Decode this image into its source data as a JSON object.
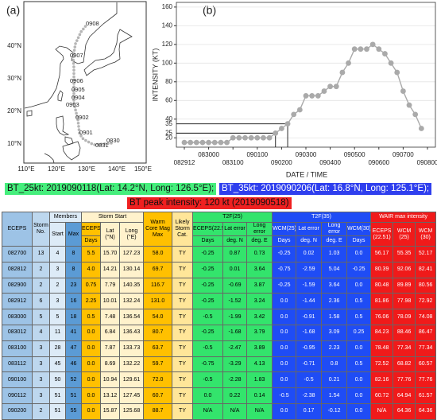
{
  "map": {
    "panel_label": "(a)",
    "lon_labels": [
      "110°E",
      "120°E",
      "130°E",
      "140°E",
      "150°E"
    ],
    "lat_labels": [
      "10°N",
      "20°N",
      "30°N",
      "40°N"
    ],
    "track_labels": [
      "0908",
      "0907",
      "0906",
      "0905",
      "0904",
      "0903",
      "0902",
      "0901",
      "0831",
      "0830"
    ]
  },
  "chart_data": {
    "type": "line",
    "panel_label": "(b)",
    "x_label": "DATE / TIME",
    "y_label": "INTENSITY (KT)",
    "categories": [
      "082912",
      null,
      null,
      null,
      "083000",
      null,
      null,
      null,
      "083100",
      null,
      null,
      null,
      "090100",
      null,
      null,
      null,
      "090200",
      null,
      null,
      null,
      "090300",
      null,
      null,
      null,
      "090400",
      null,
      null,
      null,
      "090500",
      null,
      null,
      null,
      "090600",
      null,
      null,
      null,
      "090700",
      null,
      null,
      null,
      "090800"
    ],
    "values": [
      15,
      15,
      15,
      15,
      15,
      15,
      15,
      15,
      20,
      20,
      20,
      20,
      20,
      20,
      20,
      25,
      30,
      35,
      45,
      50,
      65,
      65,
      65,
      70,
      75,
      75,
      90,
      100,
      115,
      115,
      115,
      120,
      115,
      110,
      100,
      90,
      70,
      55,
      45,
      30,
      null
    ],
    "color": "#aaaaaa",
    "ylim": [
      10,
      165
    ],
    "yticks": [
      20,
      40,
      60,
      80,
      100,
      120,
      140,
      160
    ],
    "reference_lines": [
      25,
      35
    ],
    "grid": true
  },
  "captions": [
    "BT_25kt: 2019090118(Lat: 14.2°N, Long: 126.5°E);",
    "BT_35kt: 2019090206(Lat: 16.8°N, Long: 125.1°E);",
    "BT peak intensity: 120 kt (2019090518)"
  ],
  "table": {
    "group_headers": [
      "ECEPS",
      "Storm No.",
      "Members",
      "Storm Start",
      "Warm Core Mag Max",
      "Likely Storm Cat.",
      "T2F(25)",
      "T2F(35)",
      "WAIR max intensity"
    ],
    "sub_headers": [
      "Start",
      "Max",
      "ECEPS",
      "Lat (°N)",
      "Long (°E)",
      "ECEPS(22.51)",
      "Lat error",
      "Long error",
      "WCM(25)",
      "Lat error",
      "Long error",
      "WCM(30)",
      "ECEPS (22.51)",
      "WCM (25)",
      "WCM (30)"
    ],
    "unit_headers": [
      "Days",
      "Days",
      "deg. N",
      "deg. E",
      "Days",
      "deg. N",
      "deg. E",
      "Days"
    ],
    "rows": [
      [
        "082700",
        "13",
        "4",
        "8",
        "5.5",
        "15.70",
        "127.23",
        "58.0",
        "TY",
        "-0.25",
        "0.87",
        "0.73",
        "-0.25",
        "0.02",
        "1.03",
        "0.0",
        "56.17",
        "55.35",
        "52.17"
      ],
      [
        "082812",
        "2",
        "3",
        "8",
        "4.0",
        "14.21",
        "130.14",
        "69.7",
        "TY",
        "-0.25",
        "0.01",
        "3.64",
        "-0.75",
        "-2.59",
        "5.04",
        "-0.25",
        "80.39",
        "92.06",
        "82.41"
      ],
      [
        "082900",
        "2",
        "2",
        "23",
        "0.75",
        "7.79",
        "140.35",
        "116.7",
        "TY",
        "-0.25",
        "-0.69",
        "3.87",
        "-0.25",
        "-1.59",
        "3.64",
        "0.0",
        "80.48",
        "89.89",
        "80.56"
      ],
      [
        "082912",
        "6",
        "3",
        "16",
        "2.25",
        "10.01",
        "132.24",
        "131.0",
        "TY",
        "-0.25",
        "-1.52",
        "3.24",
        "0.0",
        "-1.44",
        "2.36",
        "0.5",
        "81.86",
        "77.98",
        "72.92"
      ],
      [
        "083000",
        "5",
        "5",
        "18",
        "0.5",
        "7.48",
        "136.54",
        "54.0",
        "TY",
        "-0.5",
        "-1.99",
        "3.42",
        "0.0",
        "-0.91",
        "1.58",
        "0.5",
        "76.06",
        "78.09",
        "74.08"
      ],
      [
        "083012",
        "4",
        "11",
        "41",
        "0.0",
        "6.84",
        "136.43",
        "80.7",
        "TY",
        "-0.25",
        "-1.68",
        "3.79",
        "0.0",
        "-1.68",
        "3.09",
        "0.25",
        "84.23",
        "88.46",
        "86.47"
      ],
      [
        "083100",
        "3",
        "28",
        "47",
        "0.0",
        "7.87",
        "133.73",
        "63.7",
        "TY",
        "-0.5",
        "-2.47",
        "3.89",
        "0.0",
        "-0.95",
        "2.23",
        "0.0",
        "78.48",
        "77.34",
        "77.34"
      ],
      [
        "083112",
        "3",
        "45",
        "46",
        "0.0",
        "8.69",
        "132.22",
        "59.7",
        "TY",
        "-0.75",
        "-3.29",
        "4.13",
        "0.0",
        "-0.71",
        "0.8",
        "0.5",
        "72.52",
        "68.82",
        "60.57"
      ],
      [
        "090100",
        "3",
        "50",
        "52",
        "0.0",
        "10.94",
        "129.61",
        "72.0",
        "TY",
        "-0.5",
        "-2.28",
        "1.83",
        "0.0",
        "-0.5",
        "0.21",
        "0.0",
        "82.16",
        "77.76",
        "77.76"
      ],
      [
        "090112",
        "3",
        "51",
        "51",
        "0.0",
        "13.12",
        "127.45",
        "60.7",
        "TY",
        "0.0",
        "0.22",
        "0.14",
        "-0.5",
        "-2.38",
        "1.54",
        "0.0",
        "60.72",
        "64.94",
        "61.57"
      ],
      [
        "090200",
        "2",
        "51",
        "55",
        "0.0",
        "15.87",
        "125.68",
        "88.7",
        "TY",
        "N/A",
        "N/A",
        "N/A",
        "0.0",
        "0.17",
        "-0.12",
        "0.0",
        "N/A",
        "64.36",
        "64.36"
      ]
    ]
  }
}
